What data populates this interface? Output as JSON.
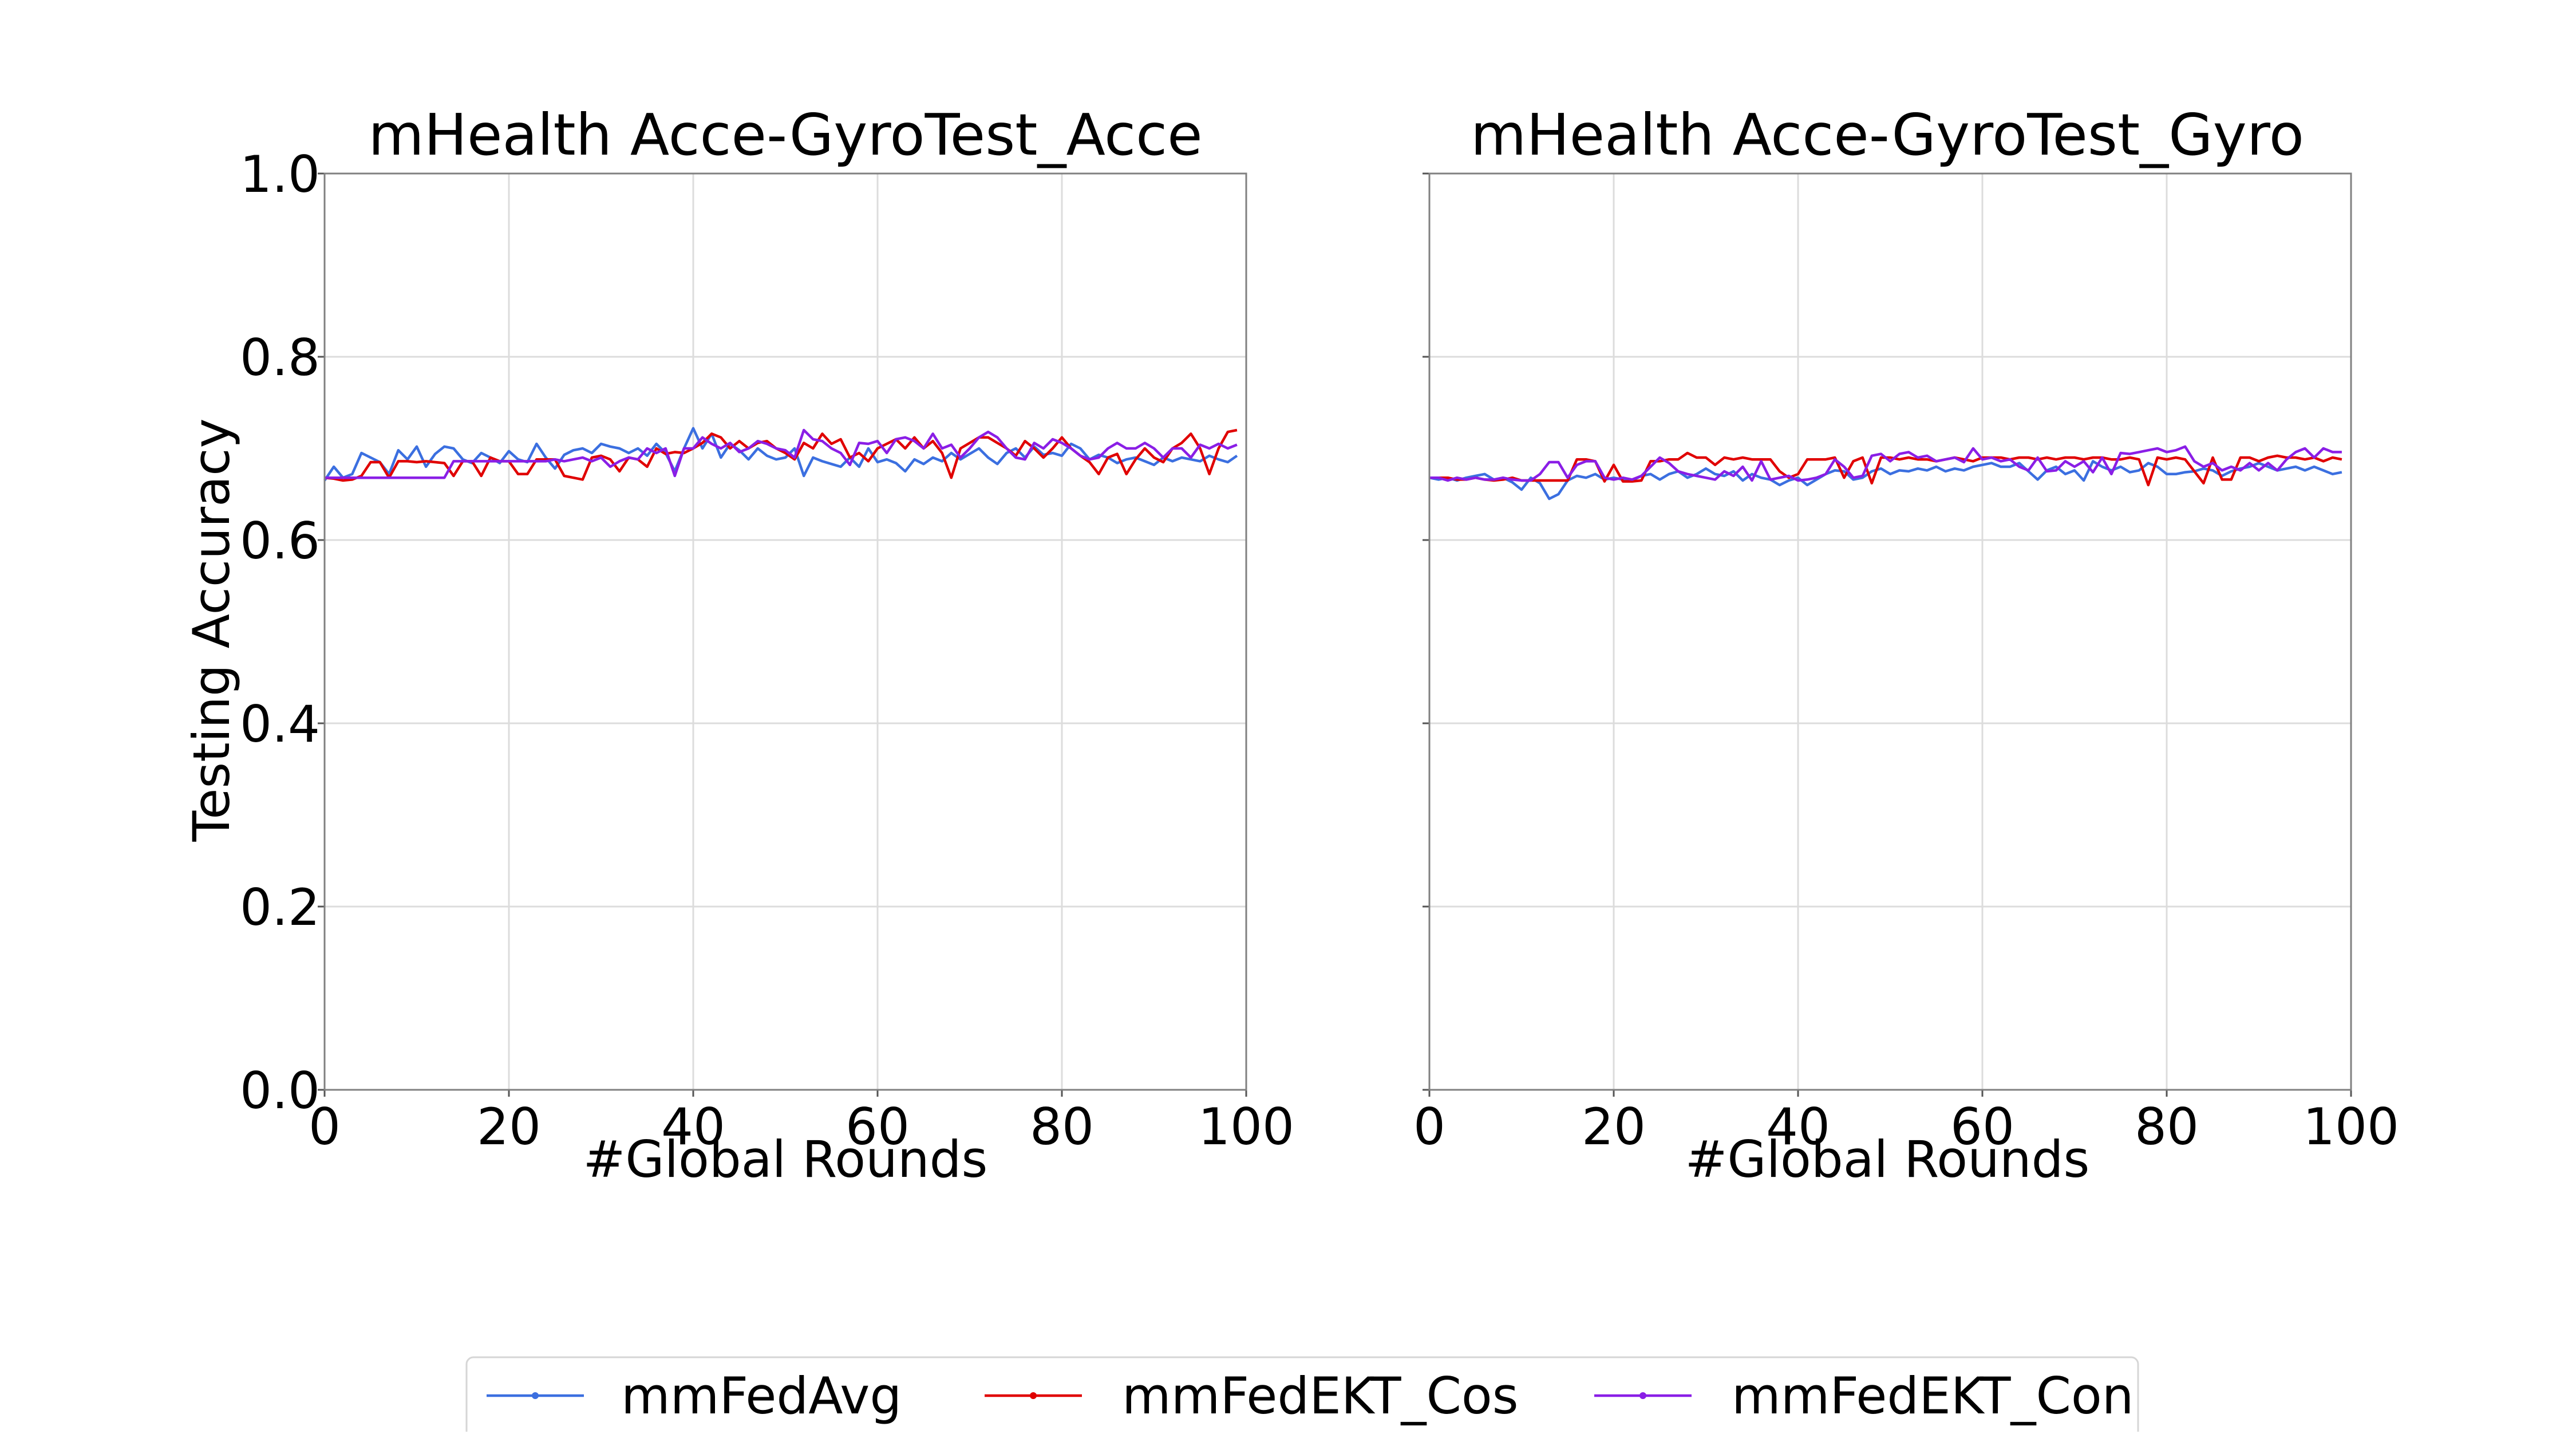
{
  "chart_data": [
    {
      "type": "line",
      "title": "mHealth Acce-GyroTest_Acce",
      "xlabel": "#Global Rounds",
      "ylabel": "Testing Accuracy",
      "xlim": [
        0,
        100
      ],
      "ylim": [
        0.0,
        1.0
      ],
      "xticks": [
        "0",
        "20",
        "40",
        "60",
        "80",
        "100"
      ],
      "yticks": [
        "0.0",
        "0.2",
        "0.4",
        "0.6",
        "0.8",
        "1.0"
      ],
      "grid": true,
      "x": [
        0,
        1,
        2,
        3,
        4,
        5,
        6,
        7,
        8,
        9,
        10,
        11,
        12,
        13,
        14,
        15,
        16,
        17,
        18,
        19,
        20,
        21,
        22,
        23,
        24,
        25,
        26,
        27,
        28,
        29,
        30,
        31,
        32,
        33,
        34,
        35,
        36,
        37,
        38,
        39,
        40,
        41,
        42,
        43,
        44,
        45,
        46,
        47,
        48,
        49,
        50,
        51,
        52,
        53,
        54,
        55,
        56,
        57,
        58,
        59,
        60,
        61,
        62,
        63,
        64,
        65,
        66,
        67,
        68,
        69,
        70,
        71,
        72,
        73,
        74,
        75,
        76,
        77,
        78,
        79,
        80,
        81,
        82,
        83,
        84,
        85,
        86,
        87,
        88,
        89,
        90,
        91,
        92,
        93,
        94,
        95,
        96,
        97,
        98,
        99
      ],
      "series": [
        {
          "name": "mmFedAvg",
          "color": "#3b6fe0",
          "values": [
            0.665,
            0.68,
            0.668,
            0.672,
            0.695,
            0.69,
            0.685,
            0.672,
            0.698,
            0.688,
            0.702,
            0.68,
            0.694,
            0.702,
            0.7,
            0.688,
            0.684,
            0.695,
            0.69,
            0.684,
            0.697,
            0.688,
            0.685,
            0.705,
            0.69,
            0.678,
            0.693,
            0.698,
            0.7,
            0.695,
            0.705,
            0.702,
            0.7,
            0.695,
            0.7,
            0.692,
            0.705,
            0.695,
            0.675,
            0.7,
            0.722,
            0.7,
            0.716,
            0.69,
            0.705,
            0.698,
            0.688,
            0.7,
            0.692,
            0.688,
            0.69,
            0.7,
            0.67,
            0.69,
            0.686,
            0.683,
            0.68,
            0.69,
            0.68,
            0.7,
            0.685,
            0.688,
            0.684,
            0.675,
            0.688,
            0.683,
            0.69,
            0.686,
            0.695,
            0.688,
            0.694,
            0.7,
            0.69,
            0.683,
            0.695,
            0.7,
            0.69,
            0.702,
            0.693,
            0.695,
            0.692,
            0.705,
            0.7,
            0.688,
            0.693,
            0.69,
            0.684,
            0.688,
            0.69,
            0.686,
            0.682,
            0.69,
            0.686,
            0.69,
            0.688,
            0.686,
            0.692,
            0.688,
            0.685,
            0.692
          ]
        },
        {
          "name": "mmFedEKT_Cos",
          "color": "#e00000",
          "values": [
            0.668,
            0.667,
            0.665,
            0.666,
            0.67,
            0.685,
            0.685,
            0.668,
            0.686,
            0.686,
            0.685,
            0.686,
            0.685,
            0.684,
            0.67,
            0.686,
            0.686,
            0.67,
            0.69,
            0.686,
            0.686,
            0.672,
            0.672,
            0.688,
            0.688,
            0.688,
            0.67,
            0.668,
            0.666,
            0.69,
            0.692,
            0.688,
            0.675,
            0.69,
            0.688,
            0.68,
            0.7,
            0.694,
            0.696,
            0.695,
            0.7,
            0.706,
            0.716,
            0.712,
            0.7,
            0.708,
            0.7,
            0.706,
            0.708,
            0.7,
            0.695,
            0.688,
            0.706,
            0.7,
            0.716,
            0.705,
            0.71,
            0.69,
            0.695,
            0.686,
            0.7,
            0.705,
            0.71,
            0.7,
            0.712,
            0.7,
            0.708,
            0.695,
            0.668,
            0.7,
            0.706,
            0.712,
            0.712,
            0.706,
            0.7,
            0.692,
            0.708,
            0.7,
            0.69,
            0.7,
            0.712,
            0.7,
            0.692,
            0.685,
            0.672,
            0.69,
            0.694,
            0.672,
            0.688,
            0.7,
            0.69,
            0.685,
            0.7,
            0.706,
            0.716,
            0.7,
            0.672,
            0.7,
            0.718,
            0.72
          ]
        },
        {
          "name": "mmFedEKT_Con",
          "color": "#8a1ee6",
          "values": [
            0.668,
            0.668,
            0.668,
            0.668,
            0.668,
            0.668,
            0.668,
            0.668,
            0.668,
            0.668,
            0.668,
            0.668,
            0.668,
            0.668,
            0.686,
            0.686,
            0.686,
            0.686,
            0.686,
            0.686,
            0.686,
            0.686,
            0.686,
            0.686,
            0.686,
            0.688,
            0.686,
            0.688,
            0.69,
            0.686,
            0.69,
            0.68,
            0.686,
            0.69,
            0.688,
            0.7,
            0.695,
            0.7,
            0.67,
            0.7,
            0.7,
            0.712,
            0.705,
            0.7,
            0.706,
            0.696,
            0.7,
            0.708,
            0.705,
            0.7,
            0.698,
            0.69,
            0.72,
            0.71,
            0.708,
            0.7,
            0.695,
            0.682,
            0.706,
            0.705,
            0.708,
            0.695,
            0.71,
            0.712,
            0.708,
            0.7,
            0.716,
            0.7,
            0.704,
            0.69,
            0.7,
            0.712,
            0.718,
            0.712,
            0.7,
            0.69,
            0.688,
            0.706,
            0.7,
            0.71,
            0.706,
            0.7,
            0.692,
            0.688,
            0.69,
            0.7,
            0.706,
            0.7,
            0.7,
            0.706,
            0.7,
            0.69,
            0.7,
            0.7,
            0.69,
            0.704,
            0.7,
            0.705,
            0.7,
            0.704
          ]
        }
      ]
    },
    {
      "type": "line",
      "title": "mHealth Acce-GyroTest_Gyro",
      "xlabel": "#Global Rounds",
      "ylabel": "",
      "xlim": [
        0,
        100
      ],
      "ylim": [
        0.0,
        1.0
      ],
      "xticks": [
        "0",
        "20",
        "40",
        "60",
        "80",
        "100"
      ],
      "yticks": [],
      "grid": true,
      "x": [
        0,
        1,
        2,
        3,
        4,
        5,
        6,
        7,
        8,
        9,
        10,
        11,
        12,
        13,
        14,
        15,
        16,
        17,
        18,
        19,
        20,
        21,
        22,
        23,
        24,
        25,
        26,
        27,
        28,
        29,
        30,
        31,
        32,
        33,
        34,
        35,
        36,
        37,
        38,
        39,
        40,
        41,
        42,
        43,
        44,
        45,
        46,
        47,
        48,
        49,
        50,
        51,
        52,
        53,
        54,
        55,
        56,
        57,
        58,
        59,
        60,
        61,
        62,
        63,
        64,
        65,
        66,
        67,
        68,
        69,
        70,
        71,
        72,
        73,
        74,
        75,
        76,
        77,
        78,
        79,
        80,
        81,
        82,
        83,
        84,
        85,
        86,
        87,
        88,
        89,
        90,
        91,
        92,
        93,
        94,
        95,
        96,
        97,
        98,
        99
      ],
      "series": [
        {
          "name": "mmFedAvg",
          "color": "#3b6fe0",
          "values": [
            0.668,
            0.666,
            0.668,
            0.665,
            0.668,
            0.67,
            0.672,
            0.666,
            0.668,
            0.663,
            0.655,
            0.668,
            0.662,
            0.645,
            0.65,
            0.665,
            0.67,
            0.668,
            0.672,
            0.666,
            0.668,
            0.666,
            0.665,
            0.67,
            0.672,
            0.666,
            0.672,
            0.675,
            0.668,
            0.672,
            0.678,
            0.672,
            0.67,
            0.675,
            0.665,
            0.672,
            0.668,
            0.666,
            0.66,
            0.665,
            0.668,
            0.66,
            0.666,
            0.672,
            0.676,
            0.675,
            0.666,
            0.668,
            0.675,
            0.678,
            0.672,
            0.676,
            0.675,
            0.678,
            0.676,
            0.68,
            0.675,
            0.678,
            0.676,
            0.68,
            0.682,
            0.684,
            0.68,
            0.68,
            0.684,
            0.675,
            0.666,
            0.676,
            0.68,
            0.672,
            0.676,
            0.665,
            0.686,
            0.68,
            0.676,
            0.68,
            0.674,
            0.676,
            0.684,
            0.68,
            0.672,
            0.672,
            0.674,
            0.675,
            0.678,
            0.676,
            0.67,
            0.675,
            0.678,
            0.68,
            0.684,
            0.68,
            0.676,
            0.678,
            0.68,
            0.676,
            0.68,
            0.676,
            0.672,
            0.674
          ]
        },
        {
          "name": "mmFedEKT_Cos",
          "color": "#e00000",
          "values": [
            0.668,
            0.668,
            0.668,
            0.666,
            0.666,
            0.668,
            0.666,
            0.665,
            0.666,
            0.668,
            0.665,
            0.665,
            0.665,
            0.665,
            0.665,
            0.665,
            0.688,
            0.688,
            0.686,
            0.664,
            0.682,
            0.664,
            0.664,
            0.665,
            0.686,
            0.686,
            0.688,
            0.688,
            0.695,
            0.69,
            0.69,
            0.682,
            0.69,
            0.688,
            0.69,
            0.688,
            0.688,
            0.688,
            0.675,
            0.668,
            0.672,
            0.688,
            0.688,
            0.688,
            0.69,
            0.668,
            0.686,
            0.69,
            0.662,
            0.69,
            0.69,
            0.688,
            0.69,
            0.688,
            0.688,
            0.686,
            0.688,
            0.69,
            0.688,
            0.686,
            0.69,
            0.69,
            0.69,
            0.688,
            0.69,
            0.69,
            0.688,
            0.69,
            0.688,
            0.69,
            0.69,
            0.688,
            0.69,
            0.69,
            0.688,
            0.688,
            0.69,
            0.688,
            0.66,
            0.69,
            0.688,
            0.69,
            0.688,
            0.675,
            0.662,
            0.69,
            0.666,
            0.666,
            0.69,
            0.69,
            0.686,
            0.69,
            0.692,
            0.69,
            0.69,
            0.688,
            0.69,
            0.686,
            0.69,
            0.688
          ]
        },
        {
          "name": "mmFedEKT_Con",
          "color": "#8a1ee6",
          "values": [
            0.668,
            0.668,
            0.665,
            0.668,
            0.666,
            0.668,
            0.666,
            0.666,
            0.668,
            0.666,
            0.665,
            0.665,
            0.672,
            0.685,
            0.685,
            0.668,
            0.682,
            0.686,
            0.686,
            0.668,
            0.666,
            0.668,
            0.666,
            0.67,
            0.68,
            0.69,
            0.684,
            0.675,
            0.672,
            0.67,
            0.668,
            0.666,
            0.675,
            0.67,
            0.68,
            0.665,
            0.686,
            0.666,
            0.668,
            0.67,
            0.665,
            0.666,
            0.668,
            0.672,
            0.688,
            0.68,
            0.668,
            0.67,
            0.692,
            0.694,
            0.686,
            0.694,
            0.696,
            0.69,
            0.692,
            0.686,
            0.688,
            0.69,
            0.685,
            0.7,
            0.688,
            0.69,
            0.686,
            0.688,
            0.68,
            0.676,
            0.69,
            0.675,
            0.676,
            0.686,
            0.68,
            0.686,
            0.674,
            0.69,
            0.672,
            0.695,
            0.694,
            0.696,
            0.698,
            0.7,
            0.696,
            0.698,
            0.702,
            0.686,
            0.68,
            0.684,
            0.676,
            0.68,
            0.676,
            0.684,
            0.676,
            0.684,
            0.676,
            0.688,
            0.696,
            0.7,
            0.69,
            0.7,
            0.696,
            0.696
          ]
        }
      ]
    }
  ],
  "legend": {
    "position": "bottom-center",
    "items": [
      {
        "label": "mmFedAvg",
        "color": "#3b6fe0"
      },
      {
        "label": "mmFedEKT_Cos",
        "color": "#e00000"
      },
      {
        "label": "mmFedEKT_Con",
        "color": "#8a1ee6"
      }
    ]
  }
}
